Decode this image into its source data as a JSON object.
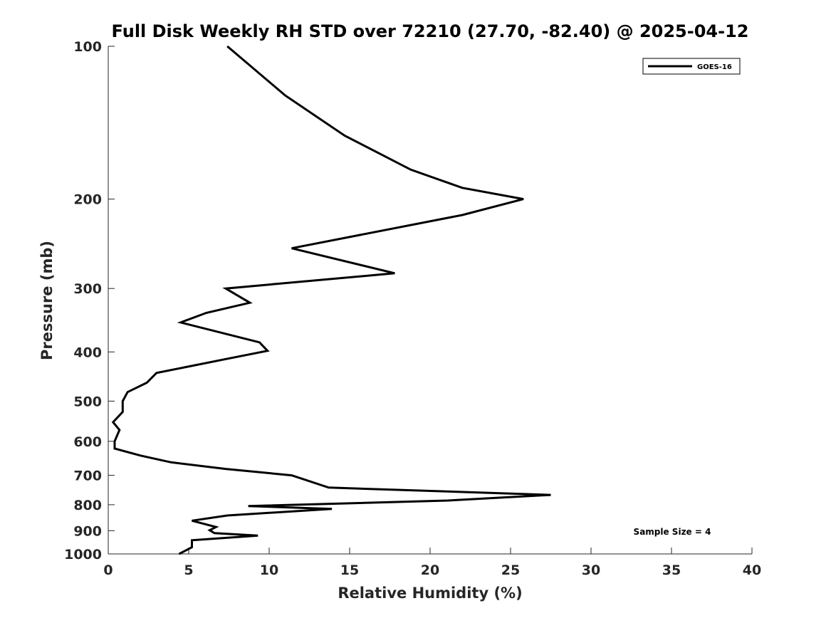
{
  "chart_data": {
    "type": "line",
    "title": "Full Disk Weekly RH STD over 72210 (27.70, -82.40) @ 2025-04-12",
    "xlabel": "Relative Humidity (%)",
    "ylabel": "Pressure (mb)",
    "xlim": [
      0,
      40
    ],
    "ylim": [
      100,
      1000
    ],
    "y_scale": "log",
    "y_reversed": true,
    "x_ticks": [
      0,
      5,
      10,
      15,
      20,
      25,
      30,
      35,
      40
    ],
    "x_tick_labels": [
      "0",
      "5",
      "10",
      "15",
      "20",
      "25",
      "30",
      "35",
      "40"
    ],
    "y_ticks": [
      100,
      200,
      300,
      400,
      500,
      600,
      700,
      800,
      900,
      1000
    ],
    "y_tick_labels": [
      "100",
      "200",
      "300",
      "400",
      "500",
      "600",
      "700",
      "800",
      "900",
      "1000"
    ],
    "grid": false,
    "legend_position": "top-right",
    "annotation": "Sample Size = 4",
    "series": [
      {
        "name": "GOES-16",
        "color": "#000000",
        "points": [
          [
            7.4,
            100
          ],
          [
            11,
            125
          ],
          [
            14.7,
            150
          ],
          [
            18.8,
            175
          ],
          [
            22,
            190
          ],
          [
            25.8,
            200
          ],
          [
            22,
            215
          ],
          [
            11.4,
            250
          ],
          [
            17.8,
            280
          ],
          [
            7.3,
            300
          ],
          [
            8.8,
            320
          ],
          [
            6.1,
            335
          ],
          [
            4.5,
            350
          ],
          [
            9.4,
            383
          ],
          [
            9.9,
            398
          ],
          [
            7,
            415
          ],
          [
            3,
            440
          ],
          [
            2.4,
            460
          ],
          [
            1.2,
            480
          ],
          [
            0.9,
            500
          ],
          [
            0.9,
            525
          ],
          [
            0.3,
            550
          ],
          [
            0.7,
            570
          ],
          [
            0.4,
            600
          ],
          [
            0.4,
            620
          ],
          [
            2,
            640
          ],
          [
            3.9,
            660
          ],
          [
            7.3,
            680
          ],
          [
            11.4,
            700
          ],
          [
            13.7,
            740
          ],
          [
            27.5,
            765
          ],
          [
            21.1,
            785
          ],
          [
            8.7,
            805
          ],
          [
            13.9,
            815
          ],
          [
            7.4,
            840
          ],
          [
            5.2,
            860
          ],
          [
            6.7,
            885
          ],
          [
            6.3,
            898
          ],
          [
            6.6,
            910
          ],
          [
            9.3,
            920
          ],
          [
            5.2,
            940
          ],
          [
            5.2,
            970
          ],
          [
            4.4,
            1000
          ]
        ]
      }
    ]
  }
}
